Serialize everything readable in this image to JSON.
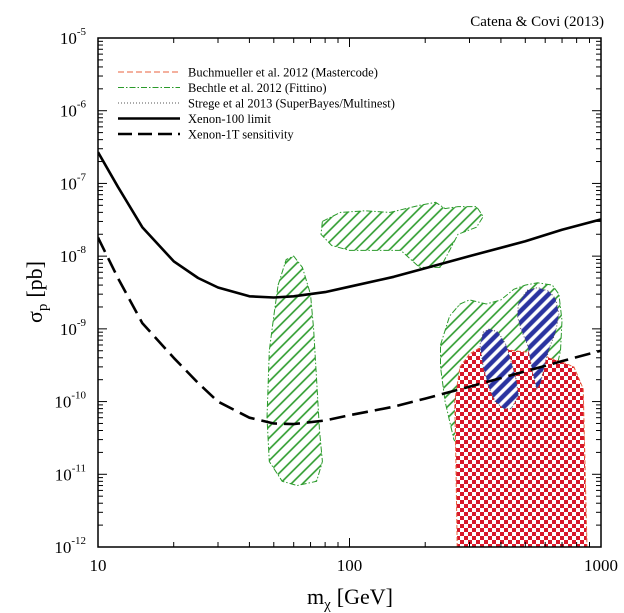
{
  "chart_data": {
    "type": "line",
    "credit": "Catena & Covi (2013)",
    "xlabel_main": "m",
    "xlabel_sub": "χ",
    "xlabel_unit": "[GeV]",
    "ylabel_main": "σ",
    "ylabel_sub": "p",
    "ylabel_unit": "[pb]",
    "xscale": "log",
    "yscale": "log",
    "xlim": [
      10,
      1000
    ],
    "ylim": [
      1e-12,
      1e-05
    ],
    "x_ticks": [
      {
        "value": 10,
        "label": "10"
      },
      {
        "value": 100,
        "label": "100"
      },
      {
        "value": 1000,
        "label": "1000"
      }
    ],
    "y_ticks": [
      {
        "value": 1e-12,
        "base": "10",
        "exp": "-12"
      },
      {
        "value": 1e-11,
        "base": "10",
        "exp": "-11"
      },
      {
        "value": 1e-10,
        "base": "10",
        "exp": "-10"
      },
      {
        "value": 1e-09,
        "base": "10",
        "exp": "-9"
      },
      {
        "value": 1e-08,
        "base": "10",
        "exp": "-8"
      },
      {
        "value": 1e-07,
        "base": "10",
        "exp": "-7"
      },
      {
        "value": 1e-06,
        "base": "10",
        "exp": "-6"
      },
      {
        "value": 1e-05,
        "base": "10",
        "exp": "-5"
      }
    ],
    "legend_position": "top-left",
    "legend": [
      {
        "label": "Buchmueller et al. 2012 (Mastercode)",
        "style": "dashed",
        "color": "#e8603c"
      },
      {
        "label": "Bechtle et al. 2012 (Fittino)",
        "style": "dashdot",
        "color": "#2a9a2a"
      },
      {
        "label": "Strege et al 2013 (SuperBayes/Multinest)",
        "style": "dotted",
        "color": "#555555"
      },
      {
        "label": "Xenon-100 limit",
        "style": "solid-thick",
        "color": "#000000"
      },
      {
        "label": "Xenon-1T sensitivity",
        "style": "dashed-thick",
        "color": "#000000"
      }
    ],
    "series": [
      {
        "name": "Xenon-100 limit",
        "color": "#000000",
        "dash": "solid",
        "points": [
          [
            10,
            2.7e-07
          ],
          [
            12,
            9e-08
          ],
          [
            15,
            2.5e-08
          ],
          [
            20,
            8.5e-09
          ],
          [
            25,
            5e-09
          ],
          [
            30,
            3.7e-09
          ],
          [
            40,
            2.8e-09
          ],
          [
            50,
            2.7e-09
          ],
          [
            60,
            2.8e-09
          ],
          [
            80,
            3.2e-09
          ],
          [
            100,
            3.8e-09
          ],
          [
            150,
            5.2e-09
          ],
          [
            200,
            6.8e-09
          ],
          [
            300,
            1e-08
          ],
          [
            500,
            1.6e-08
          ],
          [
            700,
            2.3e-08
          ],
          [
            1000,
            3.2e-08
          ]
        ]
      },
      {
        "name": "Xenon-1T sensitivity",
        "color": "#000000",
        "dash": "dashed",
        "points": [
          [
            10,
            1.8e-08
          ],
          [
            12,
            5e-09
          ],
          [
            15,
            1.2e-09
          ],
          [
            20,
            4e-10
          ],
          [
            25,
            1.8e-10
          ],
          [
            30,
            1e-10
          ],
          [
            40,
            6e-11
          ],
          [
            50,
            5e-11
          ],
          [
            60,
            4.9e-11
          ],
          [
            80,
            5.5e-11
          ],
          [
            100,
            6.5e-11
          ],
          [
            150,
            8.5e-11
          ],
          [
            200,
            1.1e-10
          ],
          [
            300,
            1.6e-10
          ],
          [
            500,
            2.6e-10
          ],
          [
            700,
            3.6e-10
          ],
          [
            1000,
            5e-10
          ]
        ]
      }
    ],
    "regions": [
      {
        "name": "Bechtle et al. 2012 (Fittino) low-mass",
        "fill": "green-hatch",
        "edge": "#2a9a2a",
        "points": [
          [
            52,
            4e-09
          ],
          [
            56,
            9e-09
          ],
          [
            60,
            1e-08
          ],
          [
            65,
            7e-09
          ],
          [
            70,
            3e-09
          ],
          [
            72,
            1e-09
          ],
          [
            74,
            2e-10
          ],
          [
            76,
            4e-11
          ],
          [
            78,
            1.5e-11
          ],
          [
            74,
            8e-12
          ],
          [
            62,
            7e-12
          ],
          [
            54,
            8e-12
          ],
          [
            48,
            1.5e-11
          ],
          [
            47,
            6e-11
          ],
          [
            48,
            5e-10
          ],
          [
            50,
            1.5e-09
          ]
        ]
      },
      {
        "name": "Bechtle et al. 2012 (Fittino) upper",
        "fill": "green-hatch",
        "edge": "#2a9a2a",
        "points": [
          [
            78,
            3e-08
          ],
          [
            92,
            4e-08
          ],
          [
            115,
            4.2e-08
          ],
          [
            145,
            4e-08
          ],
          [
            190,
            5e-08
          ],
          [
            220,
            5.5e-08
          ],
          [
            240,
            4.5e-08
          ],
          [
            270,
            4.8e-08
          ],
          [
            320,
            4.8e-08
          ],
          [
            340,
            3.5e-08
          ],
          [
            320,
            2.5e-08
          ],
          [
            270,
            2e-08
          ],
          [
            250,
            1.2e-08
          ],
          [
            230,
            7e-09
          ],
          [
            190,
            7e-09
          ],
          [
            160,
            1.2e-08
          ],
          [
            130,
            1.2e-08
          ],
          [
            100,
            1.2e-08
          ],
          [
            85,
            1.4e-08
          ],
          [
            77,
            2e-08
          ]
        ]
      },
      {
        "name": "Bechtle et al. 2012 (Fittino) high-mass",
        "fill": "green-hatch",
        "edge": "#2a9a2a",
        "points": [
          [
            230,
            6e-10
          ],
          [
            250,
            1.5e-09
          ],
          [
            275,
            2.2e-09
          ],
          [
            300,
            2.5e-09
          ],
          [
            350,
            2.2e-09
          ],
          [
            400,
            2.5e-09
          ],
          [
            450,
            3.5e-09
          ],
          [
            500,
            4e-09
          ],
          [
            560,
            4.3e-09
          ],
          [
            640,
            4e-09
          ],
          [
            680,
            3e-09
          ],
          [
            700,
            1.3e-09
          ],
          [
            690,
            5e-10
          ],
          [
            660,
            2.5e-10
          ],
          [
            610,
            1.8e-10
          ],
          [
            560,
            1.7e-10
          ],
          [
            530,
            1.2e-10
          ],
          [
            520,
            2e-11
          ],
          [
            500,
            1.3e-11
          ],
          [
            460,
            1e-11
          ],
          [
            400,
            1e-11
          ],
          [
            350,
            1.2e-11
          ],
          [
            300,
            1.7e-11
          ],
          [
            260,
            3e-11
          ],
          [
            240,
            1e-10
          ],
          [
            230,
            3e-10
          ]
        ]
      },
      {
        "name": "Buchmueller et al. 2012 (Mastercode)",
        "fill": "red-checker",
        "edge": "#e8603c",
        "points": [
          [
            268,
            1e-12
          ],
          [
            265,
            1.5e-11
          ],
          [
            262,
            1e-10
          ],
          [
            275,
            3e-10
          ],
          [
            300,
            4.5e-10
          ],
          [
            330,
            5.5e-10
          ],
          [
            380,
            5.5e-10
          ],
          [
            450,
            5e-10
          ],
          [
            500,
            4.8e-10
          ],
          [
            560,
            5e-10
          ],
          [
            620,
            4e-10
          ],
          [
            700,
            3.5e-10
          ],
          [
            780,
            3e-10
          ],
          [
            850,
            1.5e-10
          ],
          [
            880,
            1e-12
          ]
        ]
      },
      {
        "name": "Strege et al 2013 (SuperBayes/Multinest) left",
        "fill": "blue-hatch",
        "edge": "#555555",
        "points": [
          [
            340,
            9e-10
          ],
          [
            360,
            1e-09
          ],
          [
            390,
            9e-10
          ],
          [
            420,
            6e-10
          ],
          [
            440,
            3.5e-10
          ],
          [
            460,
            2e-10
          ],
          [
            470,
            1.2e-10
          ],
          [
            440,
            8e-11
          ],
          [
            410,
            8e-11
          ],
          [
            380,
            1e-10
          ],
          [
            360,
            1.5e-10
          ],
          [
            340,
            3e-10
          ],
          [
            330,
            6e-10
          ]
        ]
      },
      {
        "name": "Strege et al 2013 (SuperBayes/Multinest) right",
        "fill": "blue-hatch",
        "edge": "#555555",
        "points": [
          [
            470,
            2.3e-09
          ],
          [
            510,
            3.4e-09
          ],
          [
            560,
            3.7e-09
          ],
          [
            620,
            3.3e-09
          ],
          [
            660,
            2.6e-09
          ],
          [
            680,
            1.6e-09
          ],
          [
            660,
            9e-10
          ],
          [
            630,
            6e-10
          ],
          [
            600,
            3.5e-10
          ],
          [
            575,
            1.8e-10
          ],
          [
            555,
            1.5e-10
          ],
          [
            535,
            2.5e-10
          ],
          [
            510,
            6e-10
          ],
          [
            480,
            1e-09
          ],
          [
            465,
            1.5e-09
          ]
        ]
      }
    ]
  }
}
